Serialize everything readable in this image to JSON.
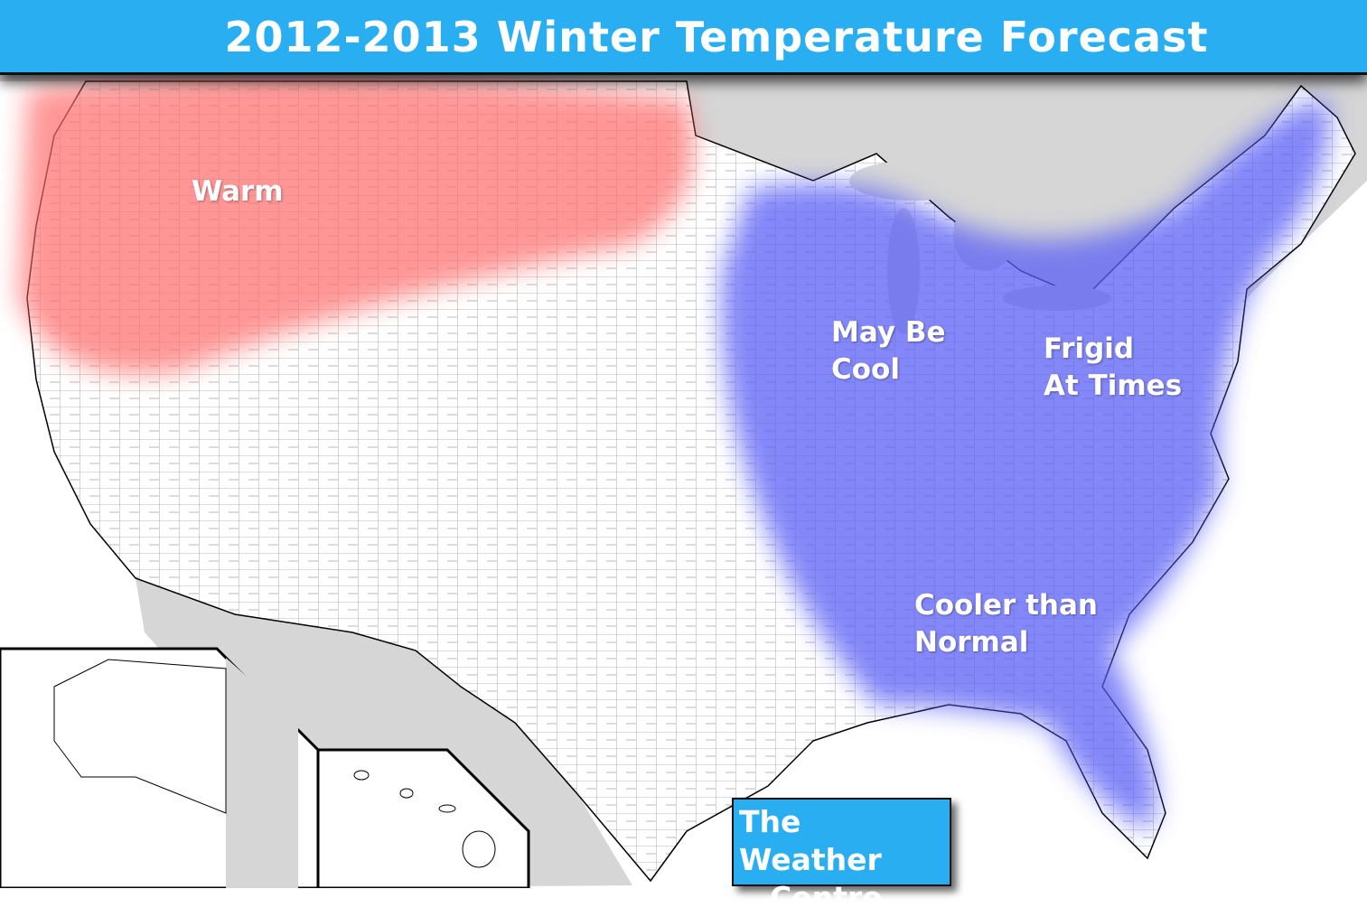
{
  "title": "2012-2013 Winter Temperature Forecast",
  "regions": [
    {
      "lines": [
        "Warm"
      ]
    },
    {
      "lines": [
        "May Be",
        "Cool"
      ]
    },
    {
      "lines": [
        "Frigid",
        "At Times"
      ]
    },
    {
      "lines": [
        "Cooler than",
        "Normal"
      ]
    }
  ],
  "credit": {
    "lines": [
      "The Weather",
      "Centre"
    ]
  }
}
